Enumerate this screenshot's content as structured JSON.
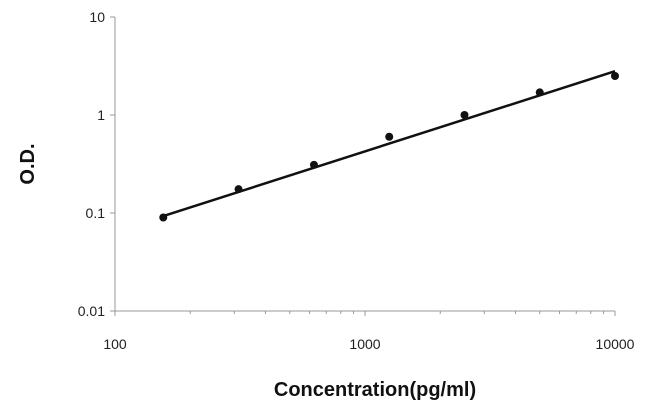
{
  "chart_data": {
    "type": "scatter",
    "xlabel": "Concentration(pg/ml)",
    "ylabel": "O.D.",
    "x_scale": "log",
    "y_scale": "log",
    "xlim": [
      100,
      10000
    ],
    "ylim": [
      0.01,
      10
    ],
    "x_ticks": [
      "100",
      "1000",
      "10000"
    ],
    "y_ticks": [
      "10",
      "1",
      "0.1",
      "0.01"
    ],
    "grid": false,
    "series": [
      {
        "x": [
          156,
          312,
          625,
          1250,
          2500,
          5000,
          10000
        ],
        "y": [
          0.09,
          0.175,
          0.31,
          0.6,
          1.0,
          1.7,
          2.5
        ]
      }
    ],
    "trendline": {
      "x": [
        156,
        10000
      ],
      "y": [
        0.093,
        2.8
      ]
    },
    "colors": {
      "points": "#111111",
      "line": "#111111",
      "axis": "#999999"
    }
  }
}
